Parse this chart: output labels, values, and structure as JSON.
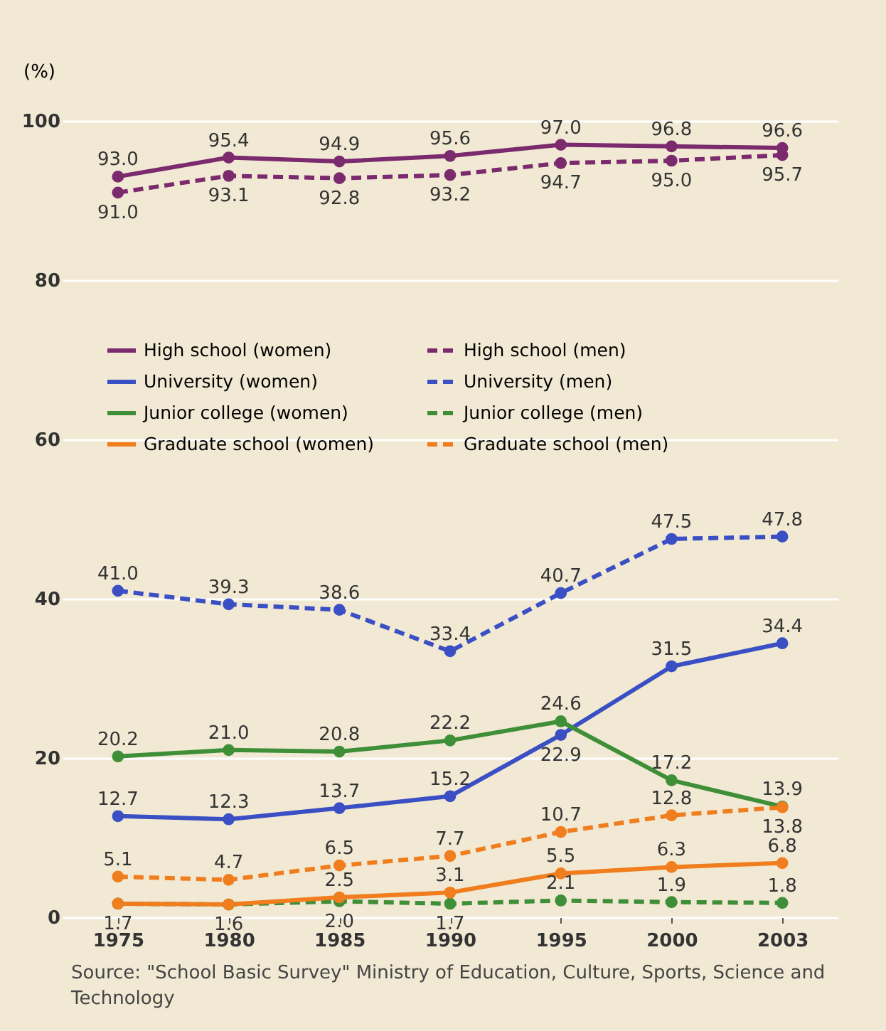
{
  "chart_data": {
    "type": "line",
    "ylabel": "(%)",
    "categories": [
      "1975",
      "1980",
      "1985",
      "1990",
      "1995",
      "2000",
      "2003"
    ],
    "ylim": [
      0,
      100
    ],
    "yticks": [
      0,
      20,
      40,
      60,
      80,
      100
    ],
    "grid": "y",
    "legend": "top left",
    "marker": "circle",
    "series": [
      {
        "name": "High school (women)",
        "color": "#7b2a6e",
        "line_style": "solid",
        "values": [
          93.0,
          95.4,
          94.9,
          95.6,
          97.0,
          96.8,
          96.6
        ],
        "value_labels": [
          "93.0",
          "95.4",
          "94.9",
          "95.6",
          "97.0",
          "96.8",
          "96.6"
        ]
      },
      {
        "name": "High school (men)",
        "color": "#7b2a6e",
        "line_style": "dashed",
        "values": [
          91.0,
          93.1,
          92.8,
          93.2,
          94.7,
          95.0,
          95.7
        ],
        "value_labels": [
          "91.0",
          "93.1",
          "92.8",
          "93.2",
          "94.7",
          "95.0",
          "95.7"
        ]
      },
      {
        "name": "University (women)",
        "color": "#3a4fc4",
        "line_style": "solid",
        "values": [
          12.7,
          12.3,
          13.7,
          15.2,
          22.9,
          31.5,
          34.4
        ],
        "value_labels": [
          "12.7",
          "12.3",
          "13.7",
          "15.2",
          "22.9",
          "31.5",
          "34.4"
        ]
      },
      {
        "name": "University (men)",
        "color": "#3a4fc4",
        "line_style": "dashed",
        "values": [
          41.0,
          39.3,
          38.6,
          33.4,
          40.7,
          47.5,
          47.8
        ],
        "value_labels": [
          "41.0",
          "39.3",
          "38.6",
          "33.4",
          "40.7",
          "47.5",
          "47.8"
        ]
      },
      {
        "name": "Junior college (women)",
        "color": "#3f8e38",
        "line_style": "solid",
        "values": [
          20.2,
          21.0,
          20.8,
          22.2,
          24.6,
          17.2,
          13.9
        ],
        "value_labels": [
          "20.2",
          "21.0",
          "20.8",
          "22.2",
          "24.6",
          "17.2",
          "13.9"
        ]
      },
      {
        "name": "Junior college (men)",
        "color": "#3f8e38",
        "line_style": "dashed",
        "values": [
          1.7,
          1.6,
          2.0,
          1.7,
          2.1,
          1.9,
          1.8
        ],
        "value_labels": [
          "1.7",
          "1.6",
          "2.0",
          "1.7",
          "2.1",
          "1.9",
          "1.8"
        ]
      },
      {
        "name": "Graduate school (women)",
        "color": "#f07d1e",
        "line_style": "solid",
        "values": [
          1.7,
          1.6,
          2.5,
          3.1,
          5.5,
          6.3,
          6.8
        ],
        "value_labels": [
          null,
          null,
          "2.5",
          "3.1",
          "5.5",
          "6.3",
          "6.8"
        ]
      },
      {
        "name": "Graduate school (men)",
        "color": "#f07d1e",
        "line_style": "dashed",
        "values": [
          5.1,
          4.7,
          6.5,
          7.7,
          10.7,
          12.8,
          13.8
        ],
        "value_labels": [
          "5.1",
          "4.7",
          "6.5",
          "7.7",
          "10.7",
          "12.8",
          "13.8"
        ]
      }
    ],
    "annotations": [
      "Source: \"School Basic Survey\" Ministry of Education, Culture, Sports, Science and Technology"
    ]
  }
}
